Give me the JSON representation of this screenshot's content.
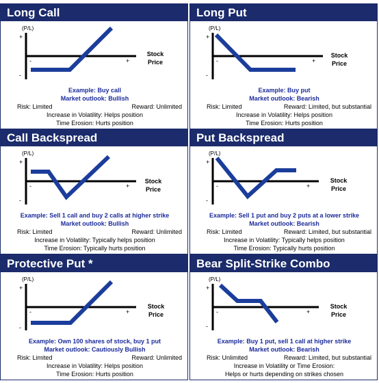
{
  "axis": {
    "pl_label": "(P/L)",
    "plus": "+",
    "minus": "-",
    "stock_price": "Stock\nPrice"
  },
  "colors": {
    "header_bg": "#1b2b6b",
    "payoff_line": "#1b3d9b",
    "example_text": "#1b2b9b"
  },
  "panels": [
    {
      "title": "Long Call",
      "example": "Example: Buy call",
      "outlook": "Market outlook: Bullish",
      "risk": "Risk: Limited",
      "reward": "Reward: Unlimited",
      "volatility": "Increase in Volatility: Helps position",
      "erosion": "Time Erosion: Hurts position"
    },
    {
      "title": "Long Put",
      "example": "Example: Buy put",
      "outlook": "Market outlook: Bearish",
      "risk": "Risk: Limited",
      "reward": "Reward: Limited, but substantial",
      "volatility": "Increase in Volatility: Helps position",
      "erosion": "Time Erosion: Hurts position"
    },
    {
      "title": "Call Backspread",
      "example": "Example: Sell 1 call and buy 2 calls at higher strike",
      "outlook": "Market outlook: Bullish",
      "risk": "Risk: Limited",
      "reward": "Reward: Unlimited",
      "volatility": "Increase in Volatility: Typically helps position",
      "erosion": "Time Erosion: Typically hurts position"
    },
    {
      "title": "Put Backspread",
      "example": "Example: Sell 1 put and buy 2 puts at a lower strike",
      "outlook": "Market outlook: Bearish",
      "risk": "Risk: Limited",
      "reward": "Reward: Limited, but substantial",
      "volatility": "Increase in Volatility: Typically helps position",
      "erosion": "Time Erosion: Typically hurts position"
    },
    {
      "title": "Protective Put *",
      "example": "Example: Own 100 shares of stock, buy 1 put",
      "outlook": "Market outlook: Cautiously Bullish",
      "risk": "Risk: Limited",
      "reward": "Reward: Unlimited",
      "volatility": "Increase in Volatility: Helps position",
      "erosion": "Time Erosion: Hurts position"
    },
    {
      "title": "Bear Split-Strike Combo",
      "example": "Example: Buy 1 put, sell 1 call at higher strike",
      "outlook": "Market outlook: Bearish",
      "risk": "Risk: Unlimited",
      "reward": "Reward: Limited, but substantial",
      "volatility": "Increase in Volatility or Time Erosion:",
      "erosion": "Helps or hurts depending on strikes chosen"
    }
  ]
}
